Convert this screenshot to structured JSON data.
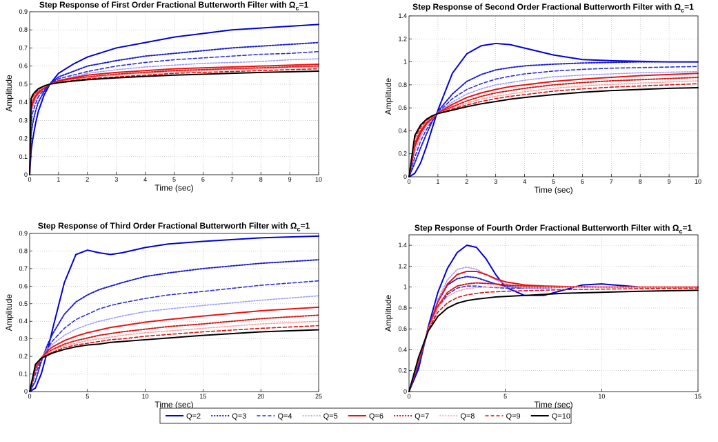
{
  "series_styles": [
    {
      "name": "Q=2",
      "color": "#0000dd",
      "dash": "solid",
      "width": 2.0
    },
    {
      "name": "Q=3",
      "color": "#1a1ad6",
      "dash": "dotted",
      "width": 2.0
    },
    {
      "name": "Q=4",
      "color": "#2b2be0",
      "dash": "dashed",
      "width": 1.6
    },
    {
      "name": "Q=5",
      "color": "#9a9aff",
      "dash": "dotted",
      "width": 1.6
    },
    {
      "name": "Q=6",
      "color": "#ee1111",
      "dash": "solid",
      "width": 2.0
    },
    {
      "name": "Q=7",
      "color": "#dd1111",
      "dash": "dotted",
      "width": 2.0
    },
    {
      "name": "Q=8",
      "color": "#ff9c9c",
      "dash": "dotted",
      "width": 1.6
    },
    {
      "name": "Q=9",
      "color": "#dd1111",
      "dash": "dashed",
      "width": 1.6
    },
    {
      "name": "Q=10",
      "color": "#000000",
      "dash": "solid",
      "width": 2.0
    }
  ],
  "legend": {
    "placement": "bottom-center",
    "items": [
      "Q=2",
      "Q=3",
      "Q=4",
      "Q=5",
      "Q=6",
      "Q=7",
      "Q=8",
      "Q=9",
      "Q=10"
    ]
  },
  "chart_data": [
    {
      "type": "line",
      "title": "Step Response of First Order Fractional Butterworth Filter with Ω",
      "title_sub": "c",
      "title_tail": "=1",
      "xlabel": "Time (sec)",
      "ylabel": "Amplitude",
      "xlim": [
        0,
        10
      ],
      "ylim": [
        0,
        0.9
      ],
      "xticks": [
        0,
        1,
        2,
        3,
        4,
        5,
        6,
        7,
        8,
        9,
        10
      ],
      "yticks": [
        0,
        0.1,
        0.2,
        0.3,
        0.4,
        0.5,
        0.6,
        0.7,
        0.8,
        0.9
      ],
      "grid": true,
      "x": [
        0,
        0.05,
        0.1,
        0.2,
        0.3,
        0.5,
        0.7,
        1,
        1.5,
        2,
        3,
        4,
        5,
        6,
        7,
        8,
        9,
        10
      ],
      "series": [
        {
          "name": "Q=2",
          "values": [
            0,
            0.13,
            0.19,
            0.28,
            0.35,
            0.44,
            0.5,
            0.56,
            0.61,
            0.65,
            0.7,
            0.73,
            0.76,
            0.78,
            0.8,
            0.81,
            0.82,
            0.83
          ]
        },
        {
          "name": "Q=3",
          "values": [
            0,
            0.22,
            0.28,
            0.35,
            0.4,
            0.46,
            0.5,
            0.54,
            0.57,
            0.6,
            0.63,
            0.655,
            0.67,
            0.685,
            0.7,
            0.71,
            0.72,
            0.73
          ]
        },
        {
          "name": "Q=4",
          "values": [
            0,
            0.29,
            0.34,
            0.39,
            0.43,
            0.47,
            0.5,
            0.53,
            0.55,
            0.57,
            0.6,
            0.62,
            0.635,
            0.645,
            0.655,
            0.665,
            0.67,
            0.68
          ]
        },
        {
          "name": "Q=5",
          "values": [
            0,
            0.33,
            0.37,
            0.41,
            0.44,
            0.48,
            0.5,
            0.52,
            0.54,
            0.56,
            0.58,
            0.595,
            0.605,
            0.615,
            0.62,
            0.625,
            0.635,
            0.64
          ]
        },
        {
          "name": "Q=6",
          "values": [
            0,
            0.36,
            0.39,
            0.43,
            0.45,
            0.48,
            0.5,
            0.52,
            0.535,
            0.55,
            0.565,
            0.575,
            0.585,
            0.59,
            0.595,
            0.6,
            0.605,
            0.61
          ]
        },
        {
          "name": "Q=7",
          "values": [
            0,
            0.38,
            0.41,
            0.44,
            0.46,
            0.48,
            0.5,
            0.515,
            0.53,
            0.54,
            0.555,
            0.565,
            0.575,
            0.58,
            0.585,
            0.59,
            0.595,
            0.6
          ]
        },
        {
          "name": "Q=8",
          "values": [
            0,
            0.395,
            0.42,
            0.445,
            0.465,
            0.485,
            0.5,
            0.512,
            0.525,
            0.535,
            0.55,
            0.56,
            0.568,
            0.574,
            0.58,
            0.585,
            0.59,
            0.595
          ]
        },
        {
          "name": "Q=9",
          "values": [
            0,
            0.41,
            0.43,
            0.45,
            0.47,
            0.49,
            0.5,
            0.51,
            0.52,
            0.53,
            0.54,
            0.55,
            0.56,
            0.565,
            0.57,
            0.575,
            0.58,
            0.585
          ]
        },
        {
          "name": "Q=10",
          "values": [
            0,
            0.42,
            0.44,
            0.46,
            0.475,
            0.49,
            0.5,
            0.508,
            0.517,
            0.525,
            0.535,
            0.543,
            0.55,
            0.555,
            0.56,
            0.565,
            0.568,
            0.572
          ]
        }
      ]
    },
    {
      "type": "line",
      "title": "Step Response of Second Order Fractional Butterworth Filter with Ω",
      "title_sub": "c",
      "title_tail": "=1",
      "xlabel": "Time (sec)",
      "ylabel": "Amplitude",
      "xlim": [
        0,
        10
      ],
      "ylim": [
        0,
        1.4
      ],
      "xticks": [
        0,
        1,
        2,
        3,
        4,
        5,
        6,
        7,
        8,
        9,
        10
      ],
      "yticks": [
        0,
        0.2,
        0.4,
        0.6,
        0.8,
        1,
        1.2,
        1.4
      ],
      "grid": true,
      "x": [
        0,
        0.2,
        0.4,
        0.6,
        0.8,
        1,
        1.5,
        2,
        2.5,
        3,
        3.5,
        4,
        5,
        6,
        7,
        8,
        9,
        10
      ],
      "series": [
        {
          "name": "Q=2",
          "values": [
            0,
            0.03,
            0.12,
            0.26,
            0.42,
            0.58,
            0.9,
            1.07,
            1.14,
            1.16,
            1.15,
            1.12,
            1.06,
            1.02,
            1.01,
            1.005,
            1.0,
            1.0
          ]
        },
        {
          "name": "Q=3",
          "values": [
            0,
            0.12,
            0.25,
            0.37,
            0.48,
            0.57,
            0.72,
            0.83,
            0.89,
            0.93,
            0.95,
            0.965,
            0.98,
            0.99,
            0.995,
            1.0,
            1.0,
            1.0
          ]
        },
        {
          "name": "Q=4",
          "values": [
            0,
            0.17,
            0.31,
            0.41,
            0.49,
            0.56,
            0.68,
            0.76,
            0.81,
            0.85,
            0.875,
            0.895,
            0.92,
            0.935,
            0.945,
            0.95,
            0.955,
            0.96
          ]
        },
        {
          "name": "Q=5",
          "values": [
            0,
            0.22,
            0.35,
            0.44,
            0.5,
            0.56,
            0.65,
            0.72,
            0.765,
            0.8,
            0.82,
            0.84,
            0.87,
            0.885,
            0.895,
            0.905,
            0.91,
            0.915
          ]
        },
        {
          "name": "Q=6",
          "values": [
            0,
            0.26,
            0.38,
            0.46,
            0.51,
            0.555,
            0.63,
            0.69,
            0.73,
            0.76,
            0.785,
            0.8,
            0.83,
            0.85,
            0.865,
            0.88,
            0.89,
            0.9
          ]
        },
        {
          "name": "Q=7",
          "values": [
            0,
            0.29,
            0.4,
            0.47,
            0.52,
            0.55,
            0.61,
            0.66,
            0.7,
            0.73,
            0.75,
            0.77,
            0.8,
            0.82,
            0.835,
            0.845,
            0.855,
            0.865
          ]
        },
        {
          "name": "Q=8",
          "values": [
            0,
            0.32,
            0.42,
            0.48,
            0.52,
            0.55,
            0.6,
            0.64,
            0.675,
            0.7,
            0.72,
            0.74,
            0.77,
            0.79,
            0.805,
            0.815,
            0.825,
            0.835
          ]
        },
        {
          "name": "Q=9",
          "values": [
            0,
            0.34,
            0.43,
            0.49,
            0.525,
            0.55,
            0.59,
            0.625,
            0.655,
            0.68,
            0.7,
            0.715,
            0.745,
            0.765,
            0.78,
            0.79,
            0.8,
            0.81
          ]
        },
        {
          "name": "Q=10",
          "values": [
            0,
            0.36,
            0.45,
            0.5,
            0.53,
            0.55,
            0.58,
            0.61,
            0.635,
            0.655,
            0.675,
            0.69,
            0.715,
            0.735,
            0.75,
            0.76,
            0.77,
            0.775
          ]
        }
      ]
    },
    {
      "type": "line",
      "title": "Step Response of Third Order Fractional Butterworth Filter with Ω",
      "title_sub": "c",
      "title_tail": "=1",
      "xlabel": "Time (sec)",
      "ylabel": "Amplitude",
      "xlim": [
        0,
        25
      ],
      "ylim": [
        0,
        0.9
      ],
      "xticks": [
        0,
        5,
        10,
        15,
        20,
        25
      ],
      "yticks": [
        0,
        0.1,
        0.2,
        0.3,
        0.4,
        0.5,
        0.6,
        0.7,
        0.8,
        0.9
      ],
      "grid": true,
      "x": [
        0,
        0.5,
        1,
        1.5,
        2,
        3,
        4,
        5,
        6,
        7,
        8,
        10,
        12,
        15,
        20,
        25
      ],
      "series": [
        {
          "name": "Q=2",
          "values": [
            0,
            0.02,
            0.1,
            0.22,
            0.36,
            0.62,
            0.78,
            0.805,
            0.79,
            0.78,
            0.79,
            0.82,
            0.84,
            0.855,
            0.875,
            0.885
          ]
        },
        {
          "name": "Q=3",
          "values": [
            0,
            0.06,
            0.17,
            0.26,
            0.33,
            0.44,
            0.51,
            0.55,
            0.58,
            0.6,
            0.62,
            0.655,
            0.675,
            0.7,
            0.73,
            0.75
          ]
        },
        {
          "name": "Q=4",
          "values": [
            0,
            0.1,
            0.18,
            0.24,
            0.29,
            0.36,
            0.41,
            0.44,
            0.47,
            0.49,
            0.505,
            0.53,
            0.55,
            0.57,
            0.605,
            0.63
          ]
        },
        {
          "name": "Q=5",
          "values": [
            0,
            0.12,
            0.19,
            0.24,
            0.27,
            0.32,
            0.355,
            0.38,
            0.4,
            0.415,
            0.43,
            0.455,
            0.47,
            0.49,
            0.52,
            0.545
          ]
        },
        {
          "name": "Q=6",
          "values": [
            0,
            0.13,
            0.19,
            0.23,
            0.255,
            0.29,
            0.315,
            0.335,
            0.35,
            0.365,
            0.375,
            0.395,
            0.41,
            0.43,
            0.46,
            0.48
          ]
        },
        {
          "name": "Q=7",
          "values": [
            0,
            0.14,
            0.19,
            0.22,
            0.24,
            0.27,
            0.29,
            0.305,
            0.32,
            0.33,
            0.34,
            0.355,
            0.37,
            0.385,
            0.415,
            0.435
          ]
        },
        {
          "name": "Q=8",
          "values": [
            0,
            0.145,
            0.19,
            0.215,
            0.235,
            0.26,
            0.275,
            0.29,
            0.3,
            0.31,
            0.32,
            0.335,
            0.345,
            0.36,
            0.385,
            0.4
          ]
        },
        {
          "name": "Q=9",
          "values": [
            0,
            0.15,
            0.19,
            0.21,
            0.225,
            0.25,
            0.265,
            0.275,
            0.285,
            0.295,
            0.3,
            0.315,
            0.325,
            0.34,
            0.36,
            0.375
          ]
        },
        {
          "name": "Q=10",
          "values": [
            0,
            0.155,
            0.19,
            0.205,
            0.22,
            0.24,
            0.255,
            0.265,
            0.27,
            0.28,
            0.285,
            0.295,
            0.305,
            0.32,
            0.34,
            0.352
          ]
        }
      ]
    },
    {
      "type": "line",
      "title": "Step Response of Fourth Order Fractional Butterworth Filter with Ω",
      "title_sub": "c",
      "title_tail": "=1",
      "xlabel": "Time (sec)",
      "ylabel": "Amplitude",
      "xlim": [
        0,
        15
      ],
      "ylim": [
        0,
        1.5
      ],
      "xticks": [
        0,
        5,
        10,
        15
      ],
      "yticks": [
        0,
        0.2,
        0.4,
        0.6,
        0.8,
        1,
        1.2,
        1.4
      ],
      "grid": true,
      "x": [
        0,
        0.5,
        1,
        1.5,
        2,
        2.5,
        3,
        3.5,
        4,
        4.5,
        5,
        6,
        7,
        8,
        9,
        10,
        12,
        15
      ],
      "series": [
        {
          "name": "Q=2",
          "values": [
            0,
            0.22,
            0.62,
            0.95,
            1.18,
            1.33,
            1.4,
            1.38,
            1.27,
            1.12,
            1.0,
            0.92,
            0.92,
            0.97,
            1.02,
            1.03,
            1.0,
            1.0
          ]
        },
        {
          "name": "Q=3",
          "values": [
            0,
            0.25,
            0.6,
            0.86,
            1.02,
            1.08,
            1.1,
            1.09,
            1.06,
            1.03,
            1.01,
            0.99,
            0.99,
            1.0,
            1.005,
            1.0,
            1.0,
            1.0
          ]
        },
        {
          "name": "Q=4",
          "values": [
            0,
            0.27,
            0.58,
            0.8,
            0.93,
            0.99,
            1.01,
            1.01,
            1.0,
            0.995,
            0.99,
            0.99,
            1.0,
            1.0,
            1.0,
            1.0,
            1.0,
            1.0
          ]
        },
        {
          "name": "Q=5",
          "values": [
            0,
            0.28,
            0.6,
            0.88,
            1.07,
            1.17,
            1.19,
            1.17,
            1.12,
            1.07,
            1.03,
            0.99,
            0.99,
            1.0,
            1.005,
            1.0,
            1.0,
            1.0
          ]
        },
        {
          "name": "Q=6",
          "values": [
            0,
            0.29,
            0.6,
            0.86,
            1.03,
            1.12,
            1.15,
            1.15,
            1.12,
            1.08,
            1.05,
            1.02,
            1.01,
            1.005,
            1.0,
            1.0,
            1.0,
            1.0
          ]
        },
        {
          "name": "Q=7",
          "values": [
            0,
            0.3,
            0.6,
            0.82,
            0.95,
            1.01,
            1.03,
            1.04,
            1.035,
            1.03,
            1.02,
            1.01,
            1.005,
            1.0,
            1.0,
            1.0,
            1.0,
            1.0
          ]
        },
        {
          "name": "Q=8",
          "values": [
            0,
            0.31,
            0.6,
            0.8,
            0.91,
            0.96,
            0.985,
            0.995,
            1.0,
            1.0,
            1.0,
            1.0,
            1.0,
            1.0,
            1.0,
            1.0,
            1.0,
            1.0
          ]
        },
        {
          "name": "Q=9",
          "values": [
            0,
            0.32,
            0.59,
            0.76,
            0.85,
            0.9,
            0.925,
            0.94,
            0.95,
            0.955,
            0.96,
            0.965,
            0.97,
            0.975,
            0.978,
            0.98,
            0.985,
            0.99
          ]
        },
        {
          "name": "Q=10",
          "values": [
            0,
            0.33,
            0.58,
            0.72,
            0.8,
            0.845,
            0.87,
            0.885,
            0.895,
            0.905,
            0.91,
            0.92,
            0.93,
            0.94,
            0.945,
            0.95,
            0.96,
            0.97
          ]
        }
      ]
    }
  ]
}
